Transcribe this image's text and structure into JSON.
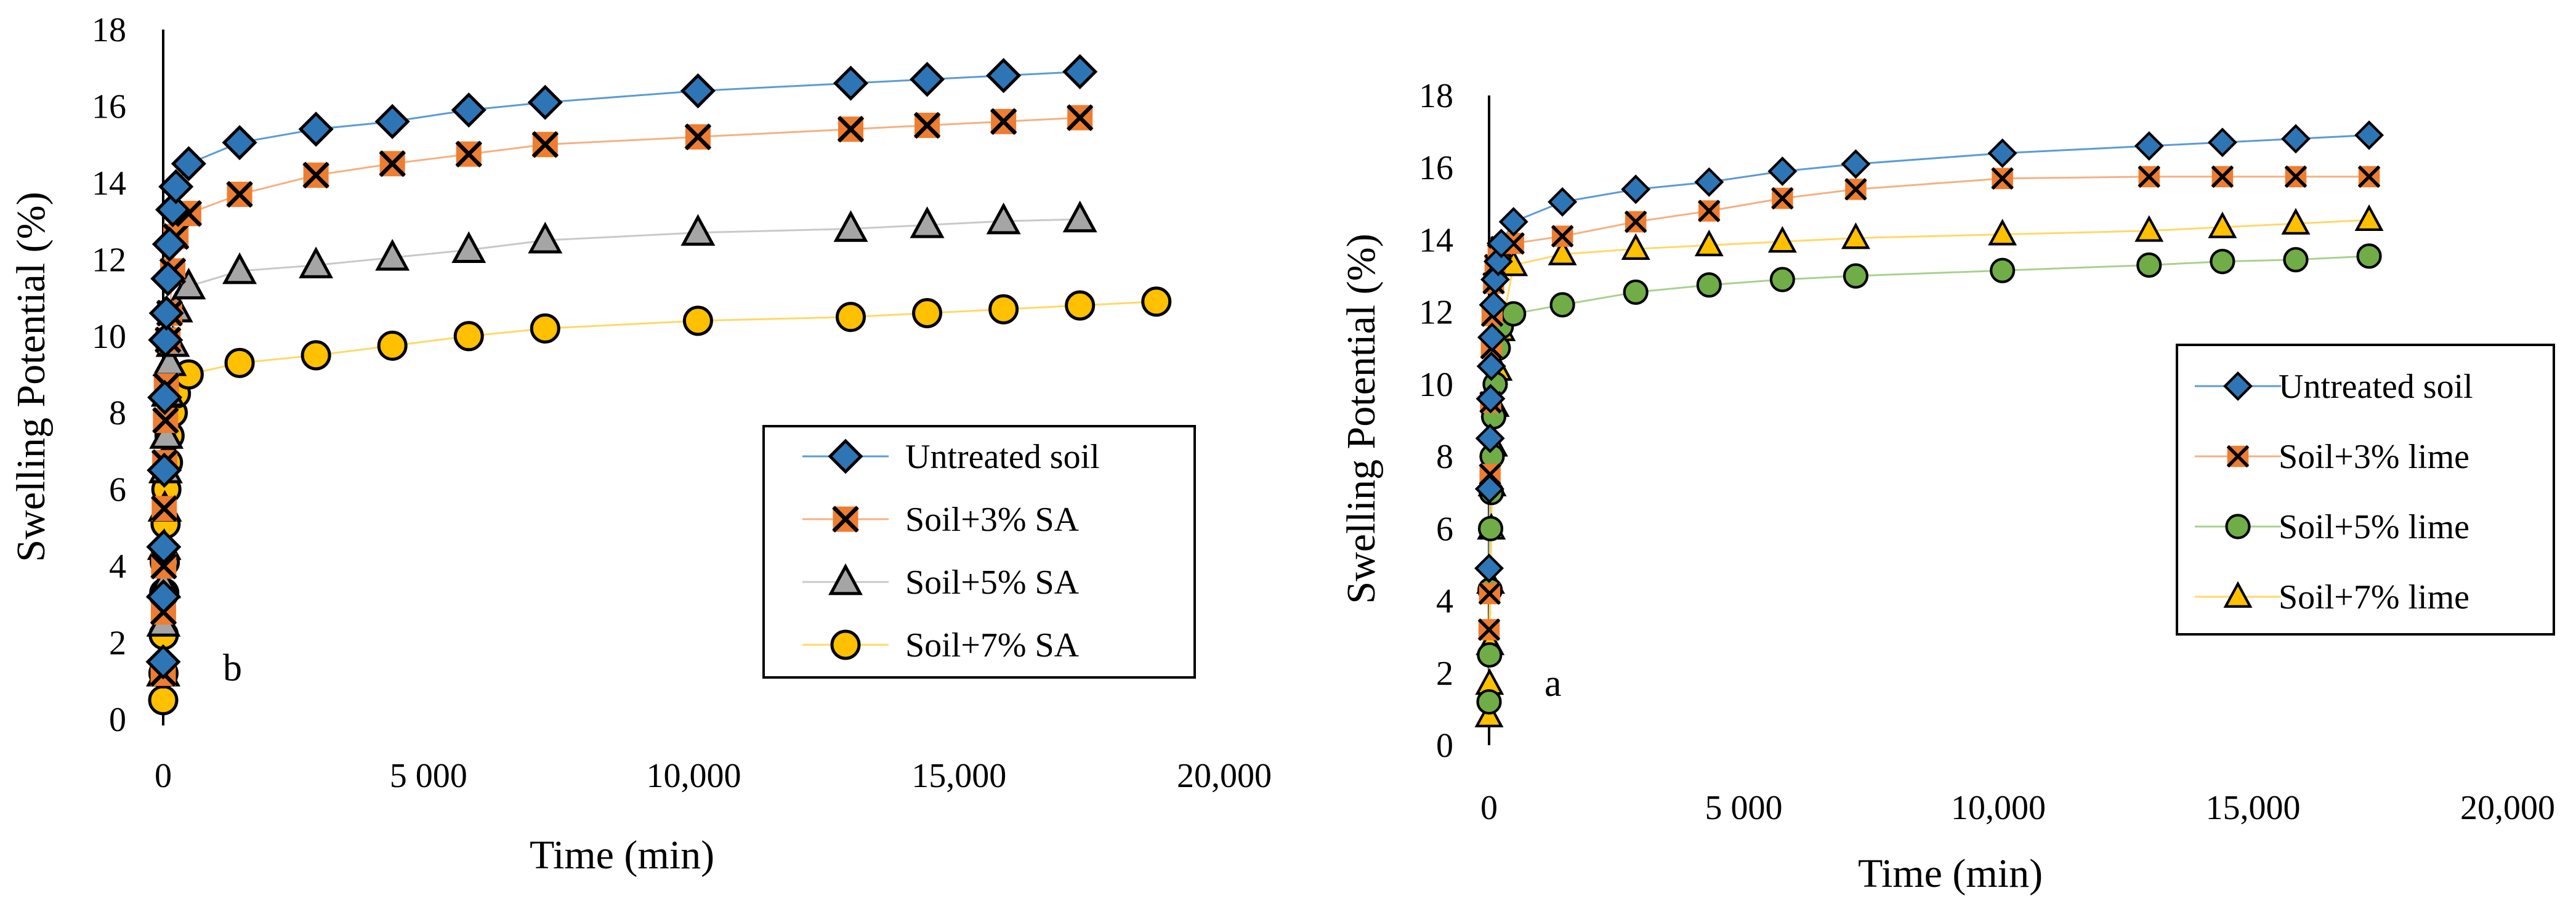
{
  "chart_data": [
    {
      "type": "scatter",
      "panel_label": "b",
      "xlabel": "Time (min)",
      "ylabel": "Swelling Potential (%)",
      "xlim": [
        0,
        20000
      ],
      "ylim": [
        0,
        18
      ],
      "x_tick_labels": [
        "0",
        "5 000",
        "10,000",
        "15,000",
        "20,000"
      ],
      "x_tick_values": [
        0,
        5000,
        10000,
        15000,
        20000
      ],
      "y_tick_labels": [
        "0",
        "2",
        "4",
        "6",
        "8",
        "10",
        "12",
        "14",
        "16",
        "18"
      ],
      "y_tick_values": [
        0,
        2,
        4,
        6,
        8,
        10,
        12,
        14,
        16,
        18
      ],
      "legend_position": "middle-right",
      "series": [
        {
          "name": "Untreated soil",
          "marker": "diamond",
          "color": "#2e75b6",
          "line_color": "#5b9bd5",
          "x": [
            0,
            5,
            10,
            20,
            30,
            45,
            60,
            90,
            120,
            180,
            240,
            480,
            1440,
            2880,
            4320,
            5760,
            7200,
            10080,
            12960,
            14400,
            15840,
            17280
          ],
          "y": [
            1.5,
            3.2,
            4.5,
            6.5,
            8.4,
            9.9,
            10.6,
            11.5,
            12.4,
            13.3,
            13.9,
            14.5,
            15.05,
            15.4,
            15.6,
            15.9,
            16.1,
            16.4,
            16.6,
            16.7,
            16.8,
            16.9
          ]
        },
        {
          "name": "Soil+3% SA",
          "marker": "x-square",
          "color": "#ed7d31",
          "line_color": "#f4b183",
          "x": [
            0,
            5,
            10,
            20,
            30,
            45,
            60,
            90,
            120,
            180,
            240,
            480,
            1440,
            2880,
            4320,
            5760,
            7200,
            10080,
            12960,
            14400,
            15840,
            17280
          ],
          "y": [
            1.2,
            2.8,
            4.0,
            5.5,
            6.7,
            7.8,
            8.7,
            9.9,
            10.6,
            11.7,
            12.6,
            13.2,
            13.7,
            14.2,
            14.5,
            14.75,
            15.0,
            15.2,
            15.4,
            15.5,
            15.6,
            15.7
          ]
        },
        {
          "name": "Soil+5% SA",
          "marker": "triangle",
          "color": "#a5a5a5",
          "line_color": "#c9c9c9",
          "x": [
            0,
            5,
            10,
            20,
            30,
            45,
            60,
            90,
            120,
            180,
            240,
            480,
            1440,
            2880,
            4320,
            5760,
            7200,
            10080,
            12960,
            14400,
            15840,
            17280
          ],
          "y": [
            1.2,
            2.5,
            3.5,
            4.5,
            5.5,
            6.5,
            7.4,
            8.5,
            9.3,
            9.8,
            10.7,
            11.3,
            11.7,
            11.85,
            12.05,
            12.25,
            12.5,
            12.7,
            12.8,
            12.9,
            13.0,
            13.05
          ]
        },
        {
          "name": "Soil+7% SA",
          "marker": "circle",
          "color": "#ffc000",
          "line_color": "#ffd966",
          "x": [
            0,
            5,
            10,
            20,
            30,
            45,
            60,
            90,
            120,
            180,
            240,
            480,
            1440,
            2880,
            4320,
            5760,
            7200,
            10080,
            12960,
            14400,
            15840,
            17280,
            18720
          ],
          "y": [
            0.5,
            1.2,
            2.2,
            3.3,
            4.1,
            5.1,
            6.0,
            6.7,
            7.4,
            8.0,
            8.5,
            9.0,
            9.3,
            9.5,
            9.75,
            10.0,
            10.2,
            10.4,
            10.5,
            10.6,
            10.7,
            10.8,
            10.9
          ]
        }
      ]
    },
    {
      "type": "scatter",
      "panel_label": "a",
      "xlabel": "Time (min)",
      "ylabel": "Swelling Potential (%)",
      "xlim": [
        0,
        20000
      ],
      "ylim": [
        0,
        18
      ],
      "x_tick_labels": [
        "0",
        "5 000",
        "10,000",
        "15,000",
        "20,000"
      ],
      "x_tick_values": [
        0,
        5000,
        10000,
        15000,
        20000
      ],
      "y_tick_labels": [
        "0",
        "2",
        "4",
        "6",
        "8",
        "10",
        "12",
        "14",
        "16",
        "18"
      ],
      "y_tick_values": [
        0,
        2,
        4,
        6,
        8,
        10,
        12,
        14,
        16,
        18
      ],
      "legend_position": "right",
      "series": [
        {
          "name": "Untreated soil",
          "marker": "diamond",
          "color": "#2e75b6",
          "line_color": "#5b9bd5",
          "x": [
            0,
            10,
            20,
            30,
            45,
            60,
            90,
            120,
            180,
            240,
            480,
            1440,
            2880,
            4320,
            5760,
            7200,
            10080,
            12960,
            14400,
            15840,
            17280
          ],
          "y": [
            4.9,
            7.1,
            8.5,
            9.6,
            10.5,
            11.3,
            12.2,
            12.9,
            13.4,
            13.9,
            14.5,
            15.05,
            15.4,
            15.6,
            15.9,
            16.1,
            16.4,
            16.6,
            16.7,
            16.8,
            16.9
          ]
        },
        {
          "name": "Soil+3% lime",
          "marker": "x-square",
          "color": "#ed7d31",
          "line_color": "#f4b183",
          "x": [
            0,
            10,
            20,
            30,
            45,
            60,
            90,
            120,
            180,
            240,
            480,
            1440,
            2880,
            4320,
            5760,
            7200,
            10080,
            12960,
            14400,
            15840,
            17280
          ],
          "y": [
            3.2,
            4.2,
            7.5,
            9.5,
            11.0,
            11.9,
            12.8,
            13.3,
            13.6,
            13.8,
            13.9,
            14.1,
            14.5,
            14.8,
            15.15,
            15.4,
            15.7,
            15.75,
            15.75,
            15.75,
            15.75
          ]
        },
        {
          "name": "Soil+5% lime",
          "marker": "circle",
          "color": "#70ad47",
          "line_color": "#a9d18e",
          "x": [
            0,
            10,
            20,
            30,
            45,
            60,
            90,
            120,
            180,
            240,
            480,
            1440,
            2880,
            4320,
            5760,
            7200,
            10080,
            12960,
            14400,
            15840,
            17280
          ],
          "y": [
            1.2,
            2.5,
            4.3,
            6.0,
            7.0,
            8.0,
            9.1,
            10.0,
            11.0,
            11.6,
            11.95,
            12.2,
            12.55,
            12.75,
            12.9,
            13.0,
            13.15,
            13.3,
            13.4,
            13.45,
            13.55
          ]
        },
        {
          "name": "Soil+7% lime",
          "marker": "triangle",
          "color": "#ffc000",
          "line_color": "#ffd966",
          "x": [
            0,
            10,
            20,
            30,
            45,
            60,
            90,
            120,
            180,
            240,
            480,
            1440,
            2880,
            4320,
            5760,
            7200,
            10080,
            12960,
            14400,
            15840,
            17280
          ],
          "y": [
            0.8,
            1.7,
            2.8,
            4.5,
            6.0,
            7.2,
            8.3,
            9.4,
            10.4,
            11.5,
            13.3,
            13.6,
            13.75,
            13.85,
            13.95,
            14.05,
            14.15,
            14.25,
            14.35,
            14.45,
            14.55
          ]
        }
      ]
    }
  ]
}
